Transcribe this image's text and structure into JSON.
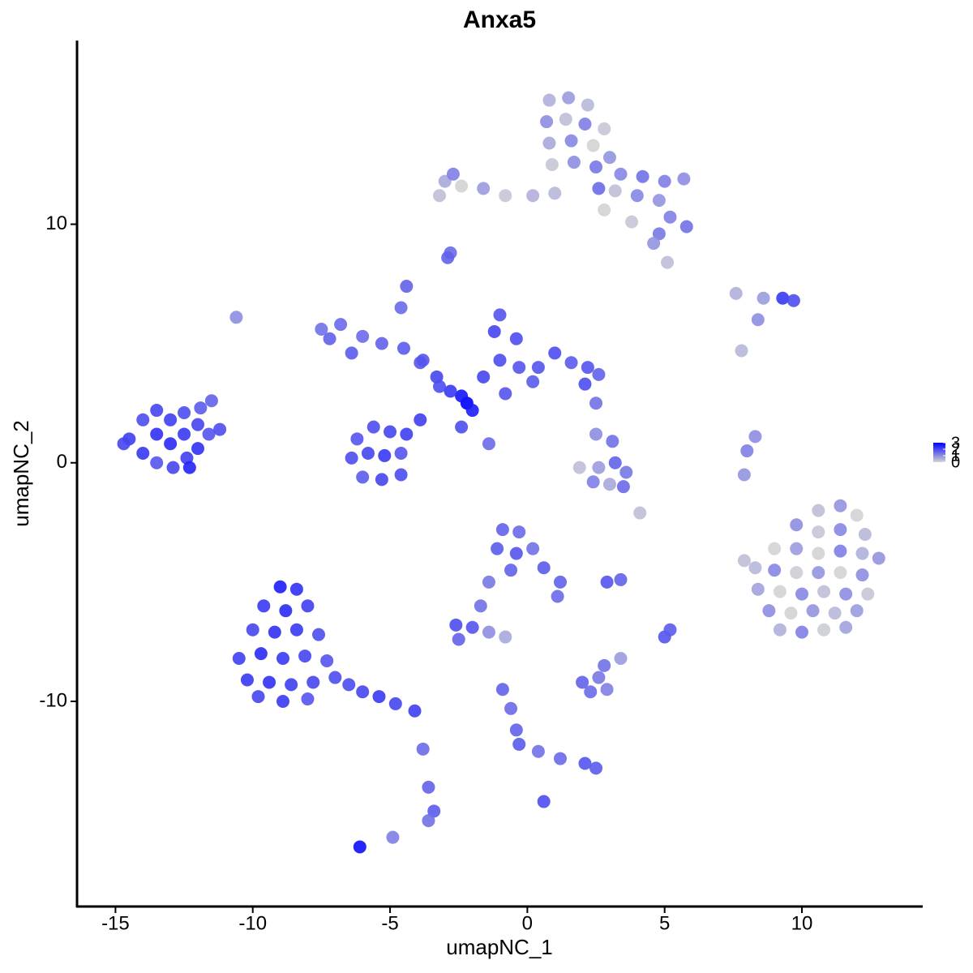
{
  "chart_data": {
    "type": "scatter",
    "title": "Anxa5",
    "x_label": "umapNC_1",
    "y_label": "umapNC_2",
    "xlim": [
      -16.4,
      14.4
    ],
    "ylim": [
      -18.6,
      17.7
    ],
    "xticks": [
      -15,
      -10,
      -5,
      0,
      5,
      10
    ],
    "yticks": [
      -10,
      0,
      10
    ],
    "colorbar": {
      "lim": [
        0,
        3
      ],
      "ticks": [
        0,
        1,
        2,
        3
      ],
      "low_color": "#d3d3d3",
      "high_color": "#0000ff"
    },
    "x": [
      -14.5,
      -14.0,
      -14.0,
      -13.5,
      -13.5,
      -13.5,
      -13.0,
      -13.0,
      -12.9,
      -12.5,
      -12.5,
      -12.4,
      -12.0,
      -12.0,
      -12.3,
      -11.6,
      -11.5,
      -11.2,
      -11.9,
      -14.7,
      -9.0,
      -8.4,
      -9.6,
      -8.8,
      -8.0,
      -10.0,
      -9.2,
      -8.4,
      -7.6,
      -10.5,
      -9.7,
      -8.9,
      -8.1,
      -7.3,
      -10.2,
      -9.4,
      -8.6,
      -7.8,
      -7.0,
      -9.8,
      -8.9,
      -8.0,
      -6.5,
      -6.0,
      -5.4,
      -4.8,
      -4.1,
      -3.8,
      -3.6,
      -3.4,
      -3.6,
      -2.2,
      -2.4,
      -2.0,
      -2.8,
      -3.3,
      -3.8,
      -4.5,
      -5.3,
      -6.0,
      -6.8,
      -7.2,
      -7.5,
      -6.4,
      -4.6,
      -4.4,
      -3.9,
      -3.2,
      -6.2,
      -5.6,
      -5.0,
      -4.4,
      -6.4,
      -5.8,
      -5.2,
      -4.6,
      -6.0,
      -5.3,
      -4.6,
      -3.9,
      -2.4,
      -1.4,
      -1.6,
      -1.0,
      -1.2,
      -1.0,
      -0.4,
      -0.3,
      0.4,
      1.0,
      1.6,
      2.2,
      2.6,
      2.1,
      0.2,
      -0.8,
      0.8,
      1.5,
      2.2,
      0.7,
      1.4,
      2.1,
      2.8,
      0.8,
      1.6,
      2.4,
      3.0,
      0.9,
      1.7,
      2.5,
      3.4,
      4.2,
      5.0,
      5.7,
      3.2,
      4.0,
      4.8,
      2.6,
      5.2,
      5.8,
      4.8,
      4.6,
      3.8,
      2.8,
      1.0,
      0.2,
      -0.8,
      -1.6,
      -2.4,
      -3.0,
      -2.7,
      -3.2,
      -2.8,
      10.6,
      11.4,
      12.0,
      9.8,
      10.6,
      11.4,
      12.3,
      9.0,
      9.8,
      10.6,
      11.4,
      12.2,
      12.8,
      8.3,
      9.0,
      9.8,
      10.6,
      11.4,
      12.2,
      8.4,
      9.2,
      10.0,
      10.8,
      11.6,
      12.4,
      8.8,
      9.6,
      10.4,
      11.2,
      12.0,
      9.2,
      10.0,
      10.8,
      11.6,
      7.9,
      2.5,
      3.1,
      3.2,
      2.6,
      3.6,
      2.4,
      3.0,
      1.9,
      3.5,
      -0.9,
      -0.3,
      -1.1,
      -0.4,
      0.2,
      -0.6,
      0.6,
      1.2,
      1.1,
      -1.4,
      -1.7,
      -2.6,
      -2.0,
      -2.5,
      -1.4,
      -0.8,
      2.0,
      2.6,
      2.3,
      2.9,
      2.8,
      3.4,
      -0.9,
      -0.6,
      -0.4,
      -0.3,
      0.4,
      1.2,
      2.1,
      2.5,
      0.6,
      2.9,
      3.4,
      5.0,
      5.2,
      9.3,
      9.7,
      8.6,
      7.6,
      8.4,
      7.8,
      8.0,
      8.3,
      7.9,
      -6.1,
      -4.9,
      -2.9,
      -10.6,
      4.1,
      5.1,
      2.5
    ],
    "y": [
      1.0,
      1.8,
      0.4,
      2.2,
      1.2,
      0.0,
      1.8,
      0.8,
      -0.2,
      2.1,
      1.2,
      0.2,
      1.6,
      0.6,
      -0.2,
      1.2,
      2.6,
      1.4,
      2.3,
      0.8,
      -5.2,
      -5.3,
      -6.0,
      -6.2,
      -6.0,
      -7.0,
      -7.1,
      -7.0,
      -7.2,
      -8.2,
      -8.0,
      -8.2,
      -8.1,
      -8.3,
      -9.1,
      -9.2,
      -9.3,
      -9.2,
      -9.0,
      -9.8,
      -10.0,
      -9.9,
      -9.3,
      -9.6,
      -9.8,
      -10.1,
      -10.4,
      -12.0,
      -13.6,
      -14.6,
      -15.0,
      2.5,
      2.8,
      2.2,
      3.0,
      3.6,
      4.3,
      4.8,
      5.0,
      5.3,
      5.8,
      5.2,
      5.6,
      4.6,
      6.5,
      7.4,
      4.2,
      3.2,
      1.0,
      1.5,
      1.3,
      1.2,
      0.2,
      0.4,
      0.3,
      0.4,
      -0.6,
      -0.7,
      -0.5,
      1.8,
      1.5,
      0.8,
      3.6,
      4.3,
      5.5,
      6.2,
      5.2,
      4.0,
      4.0,
      4.6,
      4.2,
      4.0,
      3.7,
      3.3,
      3.4,
      2.9,
      15.2,
      15.3,
      15.0,
      14.3,
      14.4,
      14.2,
      14.0,
      13.4,
      13.5,
      13.3,
      12.8,
      12.5,
      12.6,
      12.4,
      12.1,
      12.0,
      11.8,
      11.9,
      11.4,
      11.2,
      11.0,
      11.5,
      10.3,
      9.9,
      9.6,
      9.2,
      10.1,
      10.6,
      11.3,
      11.2,
      11.2,
      11.5,
      11.6,
      11.8,
      12.1,
      11.2,
      8.8,
      -2.0,
      -1.8,
      -2.2,
      -2.6,
      -2.9,
      -2.8,
      -3.0,
      -3.6,
      -3.6,
      -3.8,
      -3.7,
      -3.8,
      -4.0,
      -4.4,
      -4.5,
      -4.6,
      -4.6,
      -4.6,
      -4.7,
      -5.3,
      -5.4,
      -5.5,
      -5.4,
      -5.5,
      -5.5,
      -6.2,
      -6.3,
      -6.2,
      -6.3,
      -6.2,
      -7.0,
      -7.1,
      -7.0,
      -6.9,
      -4.1,
      1.2,
      0.9,
      0.0,
      -0.2,
      -0.4,
      -0.8,
      -0.9,
      -0.2,
      -1.0,
      -2.8,
      -2.9,
      -3.6,
      -3.8,
      -3.6,
      -4.5,
      -4.4,
      -5.0,
      -5.6,
      -5.0,
      -6.0,
      -6.8,
      -6.9,
      -7.4,
      -7.1,
      -7.3,
      -9.2,
      -9.0,
      -9.6,
      -9.5,
      -8.5,
      -8.2,
      -9.5,
      -10.3,
      -11.2,
      -11.8,
      -12.1,
      -12.4,
      -12.6,
      -12.8,
      -14.2,
      -5.0,
      -4.9,
      -7.3,
      -7.0,
      6.9,
      6.8,
      6.9,
      7.1,
      6.0,
      4.7,
      0.5,
      1.1,
      -0.5,
      -16.1,
      -15.7,
      8.6,
      6.1,
      -2.1,
      8.4,
      2.5
    ],
    "values": [
      2.1,
      1.9,
      2.2,
      2.0,
      2.3,
      1.8,
      2.1,
      2.4,
      2.0,
      1.9,
      2.2,
      2.1,
      2.0,
      2.3,
      2.5,
      1.8,
      1.6,
      1.9,
      1.7,
      2.0,
      2.6,
      2.3,
      2.2,
      2.4,
      2.1,
      2.0,
      2.3,
      2.2,
      1.9,
      2.1,
      2.4,
      2.2,
      2.0,
      1.8,
      2.2,
      2.3,
      2.1,
      2.0,
      1.9,
      2.0,
      2.2,
      1.8,
      1.9,
      2.0,
      2.2,
      2.0,
      2.1,
      1.5,
      1.6,
      1.7,
      1.4,
      3.0,
      2.7,
      2.6,
      2.2,
      2.0,
      1.8,
      1.7,
      1.6,
      1.5,
      1.5,
      1.6,
      1.4,
      1.7,
      1.5,
      1.6,
      1.8,
      1.9,
      1.8,
      1.9,
      2.0,
      2.1,
      1.9,
      2.0,
      2.2,
      1.8,
      1.7,
      2.0,
      1.9,
      2.1,
      1.9,
      1.5,
      2.0,
      1.9,
      2.0,
      1.8,
      1.9,
      1.8,
      1.8,
      1.9,
      1.7,
      1.8,
      1.6,
      1.9,
      1.7,
      1.8,
      0.5,
      0.8,
      0.4,
      1.0,
      0.3,
      1.2,
      0.2,
      0.6,
      1.1,
      0.0,
      0.9,
      0.2,
      1.0,
      1.3,
      1.1,
      1.4,
      1.2,
      1.0,
      0.3,
      1.1,
      0.9,
      1.5,
      1.2,
      1.4,
      1.3,
      0.9,
      0.2,
      0.0,
      0.4,
      0.5,
      0.2,
      0.8,
      0.0,
      0.6,
      1.2,
      0.3,
      1.5,
      0.3,
      0.9,
      0.0,
      1.0,
      0.2,
      1.1,
      0.4,
      0.0,
      0.8,
      0.0,
      1.2,
      0.5,
      0.9,
      0.4,
      1.1,
      0.1,
      0.9,
      0.0,
      1.0,
      0.7,
      0.0,
      1.1,
      0.3,
      1.0,
      0.2,
      1.0,
      0.0,
      0.9,
      0.4,
      0.8,
      0.5,
      1.2,
      0.1,
      0.7,
      0.3,
      1.0,
      1.4,
      1.6,
      0.8,
      1.3,
      1.2,
      0.6,
      0.3,
      1.5,
      1.6,
      1.5,
      1.7,
      1.8,
      1.4,
      1.6,
      1.7,
      1.6,
      1.5,
      1.3,
      1.4,
      1.9,
      1.8,
      1.6,
      1.0,
      0.6,
      1.6,
      1.3,
      1.5,
      1.2,
      1.4,
      0.8,
      1.6,
      1.5,
      1.6,
      1.7,
      1.4,
      1.5,
      1.8,
      1.7,
      1.9,
      1.8,
      1.6,
      1.8,
      1.7,
      2.2,
      1.9,
      0.8,
      0.5,
      1.0,
      0.4,
      1.2,
      1.0,
      0.9,
      2.8,
      1.2,
      1.6,
      1.0,
      0.3,
      0.3,
      1.4
    ]
  }
}
